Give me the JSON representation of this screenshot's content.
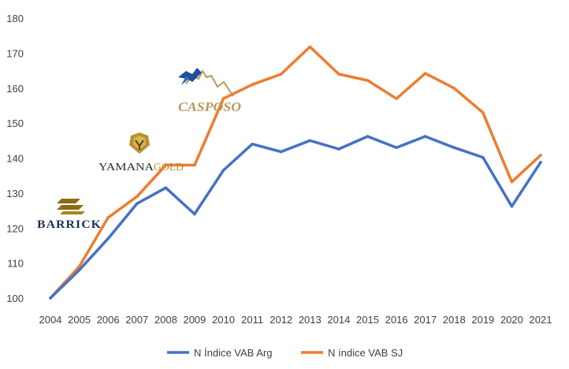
{
  "chart_data": {
    "type": "line",
    "title": "",
    "xlabel": "",
    "ylabel": "",
    "ylim": [
      100,
      180
    ],
    "yticks": [
      100,
      110,
      120,
      130,
      140,
      150,
      160,
      170,
      180
    ],
    "grid": false,
    "legend_position": "bottom",
    "x": [
      2004,
      2005,
      2006,
      2007,
      2008,
      2009,
      2010,
      2011,
      2012,
      2013,
      2014,
      2015,
      2016,
      2017,
      2018,
      2019,
      2020,
      2021
    ],
    "series": [
      {
        "name": "N Índice VAB Arg",
        "color": "#4472C4",
        "values": [
          100,
          108,
          117,
          127,
          131.5,
          124,
          136.5,
          144,
          141.8,
          145,
          142.6,
          146.2,
          143,
          146.2,
          143,
          140.2,
          126.2,
          138.8
        ]
      },
      {
        "name": "N índice VAB SJ",
        "color": "#ED7D31",
        "values": [
          100,
          109,
          123,
          129,
          138,
          138,
          157,
          161,
          164,
          171.8,
          164,
          162.2,
          157,
          164.2,
          160,
          153,
          133.2,
          140.8
        ]
      }
    ],
    "annotations": [
      {
        "label": "BARRICK",
        "kind": "logo",
        "at_year": 2004
      },
      {
        "label": "YAMANAGOLD",
        "kind": "logo",
        "at_year": 2007
      },
      {
        "label": "CASPOSO",
        "kind": "logo",
        "at_year": 2009
      }
    ]
  }
}
